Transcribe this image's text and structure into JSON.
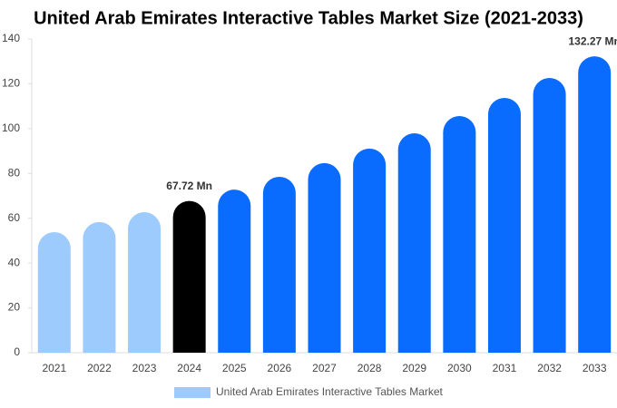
{
  "chart_data": {
    "type": "bar",
    "title": "United Arab Emirates Interactive Tables Market Size (2021-2033)",
    "categories": [
      "2021",
      "2022",
      "2023",
      "2024",
      "2025",
      "2026",
      "2027",
      "2028",
      "2029",
      "2030",
      "2031",
      "2032",
      "2033"
    ],
    "series": [
      {
        "name": "United Arab Emirates Interactive Tables Market",
        "color": "#9ecbfd",
        "values": [
          53.8,
          58.3,
          62.7,
          67.72,
          72.8,
          78.5,
          84.6,
          91.1,
          97.9,
          105.6,
          113.7,
          122.6,
          132.27
        ],
        "value_labels": [
          null,
          null,
          null,
          "67.72 Mn",
          null,
          null,
          null,
          null,
          null,
          null,
          null,
          null,
          "132.27 Mn"
        ],
        "bar_colors": [
          "#9ecbfd",
          "#9ecbfd",
          "#9ecbfd",
          "#000000",
          "#0a6cff",
          "#0a6cff",
          "#0a6cff",
          "#0a6cff",
          "#0a6cff",
          "#0a6cff",
          "#0a6cff",
          "#0a6cff",
          "#0a6cff"
        ]
      }
    ],
    "ylim": [
      0,
      140
    ],
    "yticks": [
      0,
      20,
      40,
      60,
      80,
      100,
      120,
      140
    ],
    "grid": false,
    "legend": "bottom"
  }
}
